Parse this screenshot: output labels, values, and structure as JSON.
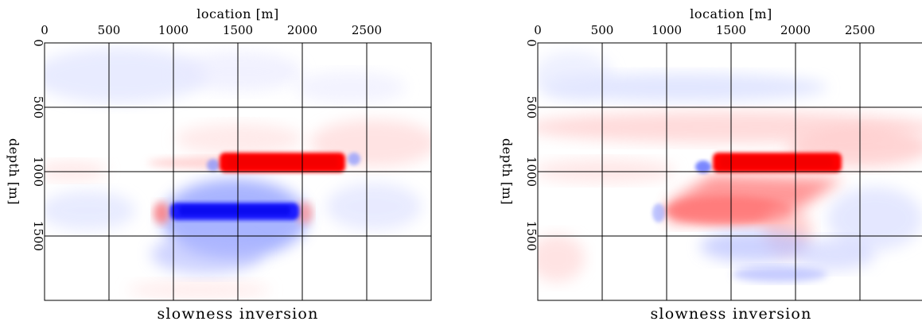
{
  "panels": [
    {
      "caption": "slowness inversion",
      "xlabel": "location [m]",
      "ylabel": "depth [m]",
      "x_ticks": [
        "0",
        "500",
        "1000",
        "1500",
        "2000",
        "2500"
      ],
      "y_ticks": [
        "0",
        "500",
        "1000",
        "1500"
      ]
    },
    {
      "caption": "slowness inversion",
      "xlabel": "location [m]",
      "ylabel": "depth [m]",
      "x_ticks": [
        "0",
        "500",
        "1000",
        "1500",
        "2000",
        "2500"
      ],
      "y_ticks": [
        "0",
        "500",
        "1000",
        "1500"
      ]
    }
  ],
  "colors": {
    "positive": "#ff0000",
    "negative": "#0000ff",
    "zero": "#ffffff",
    "grid": "#000000"
  },
  "chart_data": [
    {
      "type": "heatmap",
      "title": "slowness inversion",
      "xlabel": "location [m]",
      "ylabel": "depth [m]",
      "xlim": [
        0,
        3000
      ],
      "ylim": [
        2000,
        0
      ],
      "grid": true,
      "features": [
        {
          "x": [
            1350,
            2330
          ],
          "y": [
            880,
            1000
          ],
          "value": 1.0
        },
        {
          "x": [
            980,
            1990
          ],
          "y": [
            1250,
            1380
          ],
          "value": -0.9
        },
        {
          "x": [
            1000,
            2000
          ],
          "y": [
            1050,
            1600
          ],
          "value": -0.35
        },
        {
          "x": [
            1000,
            3000
          ],
          "y": [
            600,
            1300
          ],
          "value": 0.12
        }
      ]
    },
    {
      "type": "heatmap",
      "title": "slowness inversion",
      "xlabel": "location [m]",
      "ylabel": "depth [m]",
      "xlim": [
        0,
        3000
      ],
      "ylim": [
        2000,
        0
      ],
      "grid": true,
      "features": [
        {
          "x": [
            1350,
            2330
          ],
          "y": [
            880,
            1000
          ],
          "value": 1.0
        },
        {
          "x": [
            1000,
            1950
          ],
          "y": [
            1050,
            1380
          ],
          "value": 0.45
        },
        {
          "x": [
            0,
            3000
          ],
          "y": [
            650,
            950
          ],
          "value": 0.2
        },
        {
          "x": [
            1000,
            2400
          ],
          "y": [
            1600,
            1800
          ],
          "value": -0.2
        }
      ]
    }
  ]
}
